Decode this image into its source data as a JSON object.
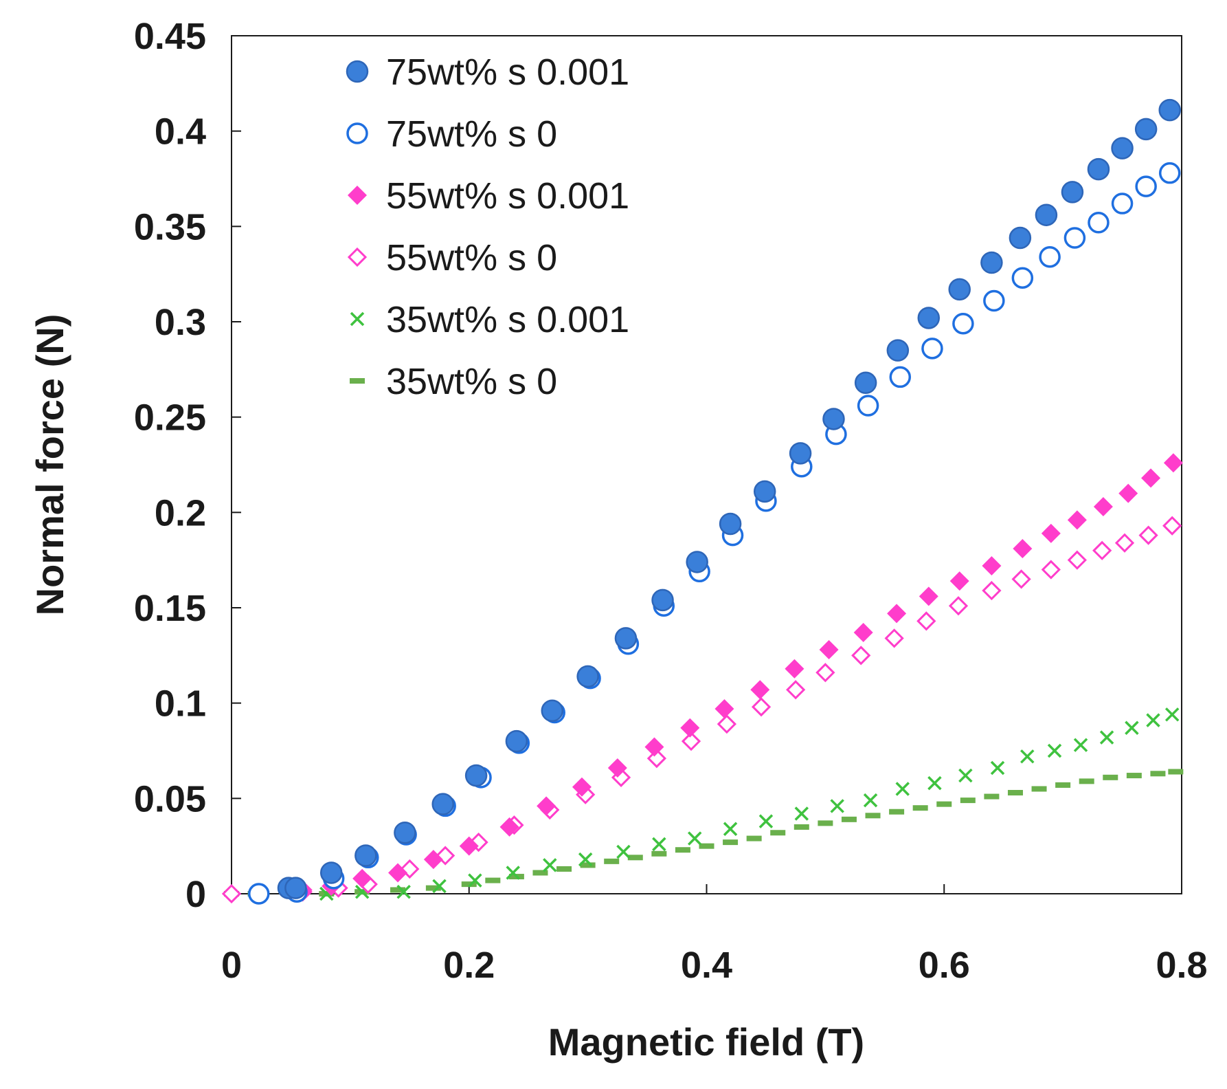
{
  "chart_data": {
    "type": "scatter",
    "title": "",
    "xlabel": "Magnetic field (T)",
    "ylabel": "Normal force (N)",
    "xlim": [
      0,
      0.8
    ],
    "ylim": [
      0,
      0.45
    ],
    "xticks": [
      0,
      0.2,
      0.4,
      0.6,
      0.8
    ],
    "xtick_labels": [
      "0",
      "0.2",
      "0.4",
      "0.6",
      "0.8"
    ],
    "yticks": [
      0,
      0.05,
      0.1,
      0.15,
      0.2,
      0.25,
      0.3,
      0.35,
      0.4,
      0.45
    ],
    "ytick_labels": [
      "0",
      "0.05",
      "0.1",
      "0.15",
      "0.2",
      "0.25",
      "0.3",
      "0.35",
      "0.4",
      "0.45"
    ],
    "grid": false,
    "legend_position": "top-left",
    "series": [
      {
        "name": "75wt% s 0.001",
        "marker": "circle-filled",
        "color": "#3a7fd9",
        "x": [
          0.048,
          0.054,
          0.084,
          0.113,
          0.146,
          0.178,
          0.206,
          0.24,
          0.27,
          0.3,
          0.332,
          0.363,
          0.392,
          0.42,
          0.449,
          0.479,
          0.507,
          0.534,
          0.561,
          0.587,
          0.613,
          0.64,
          0.664,
          0.686,
          0.708,
          0.73,
          0.75,
          0.77,
          0.79
        ],
        "y": [
          0.003,
          0.003,
          0.011,
          0.02,
          0.032,
          0.047,
          0.062,
          0.08,
          0.096,
          0.114,
          0.134,
          0.154,
          0.174,
          0.194,
          0.211,
          0.231,
          0.249,
          0.268,
          0.285,
          0.302,
          0.317,
          0.331,
          0.344,
          0.356,
          0.368,
          0.38,
          0.391,
          0.401,
          0.411
        ]
      },
      {
        "name": "75wt% s 0",
        "marker": "circle-open",
        "color": "#1f6fe0",
        "x": [
          0.023,
          0.055,
          0.086,
          0.115,
          0.147,
          0.18,
          0.21,
          0.242,
          0.272,
          0.302,
          0.334,
          0.364,
          0.394,
          0.422,
          0.45,
          0.48,
          0.509,
          0.536,
          0.563,
          0.59,
          0.616,
          0.642,
          0.666,
          0.689,
          0.71,
          0.73,
          0.75,
          0.77,
          0.79
        ],
        "y": [
          0.0,
          0.001,
          0.008,
          0.019,
          0.031,
          0.046,
          0.061,
          0.079,
          0.095,
          0.113,
          0.131,
          0.151,
          0.169,
          0.188,
          0.206,
          0.224,
          0.241,
          0.256,
          0.271,
          0.286,
          0.299,
          0.311,
          0.323,
          0.334,
          0.344,
          0.352,
          0.362,
          0.371,
          0.378
        ]
      },
      {
        "name": "55wt% s 0.001",
        "marker": "diamond-filled",
        "color": "#ff3dcb",
        "x": [
          0.06,
          0.084,
          0.11,
          0.14,
          0.17,
          0.2,
          0.234,
          0.265,
          0.295,
          0.325,
          0.356,
          0.386,
          0.415,
          0.445,
          0.474,
          0.503,
          0.532,
          0.56,
          0.587,
          0.613,
          0.64,
          0.666,
          0.69,
          0.712,
          0.734,
          0.755,
          0.774,
          0.793
        ],
        "y": [
          0.002,
          0.004,
          0.008,
          0.011,
          0.018,
          0.025,
          0.035,
          0.046,
          0.056,
          0.066,
          0.077,
          0.087,
          0.097,
          0.107,
          0.118,
          0.128,
          0.137,
          0.147,
          0.156,
          0.164,
          0.172,
          0.181,
          0.189,
          0.196,
          0.203,
          0.21,
          0.218,
          0.226
        ]
      },
      {
        "name": "55wt% s 0",
        "marker": "diamond-open",
        "color": "#ff3dcb",
        "x": [
          0.0,
          0.06,
          0.09,
          0.115,
          0.15,
          0.18,
          0.208,
          0.238,
          0.268,
          0.298,
          0.328,
          0.358,
          0.387,
          0.417,
          0.446,
          0.475,
          0.5,
          0.53,
          0.558,
          0.585,
          0.612,
          0.64,
          0.665,
          0.69,
          0.712,
          0.733,
          0.752,
          0.772,
          0.792
        ],
        "y": [
          0.0,
          0.001,
          0.003,
          0.005,
          0.013,
          0.02,
          0.027,
          0.036,
          0.044,
          0.052,
          0.061,
          0.071,
          0.08,
          0.089,
          0.098,
          0.107,
          0.116,
          0.125,
          0.134,
          0.143,
          0.151,
          0.159,
          0.165,
          0.17,
          0.175,
          0.18,
          0.184,
          0.188,
          0.193
        ]
      },
      {
        "name": "35wt% s 0.001",
        "marker": "x",
        "color": "#3fc23f",
        "x": [
          0.08,
          0.11,
          0.145,
          0.175,
          0.205,
          0.237,
          0.268,
          0.298,
          0.33,
          0.36,
          0.39,
          0.42,
          0.45,
          0.48,
          0.51,
          0.538,
          0.565,
          0.592,
          0.618,
          0.645,
          0.67,
          0.693,
          0.715,
          0.737,
          0.758,
          0.776,
          0.792
        ],
        "y": [
          0.0,
          0.001,
          0.001,
          0.004,
          0.007,
          0.011,
          0.015,
          0.018,
          0.022,
          0.026,
          0.029,
          0.034,
          0.038,
          0.042,
          0.046,
          0.049,
          0.055,
          0.058,
          0.062,
          0.066,
          0.072,
          0.075,
          0.078,
          0.082,
          0.087,
          0.091,
          0.094
        ]
      },
      {
        "name": "35wt% s 0",
        "marker": "dash",
        "color": "#6ab04c",
        "x": [
          0.0,
          0.02,
          0.05,
          0.08,
          0.11,
          0.14,
          0.17,
          0.2,
          0.22,
          0.24,
          0.26,
          0.28,
          0.3,
          0.32,
          0.34,
          0.36,
          0.38,
          0.4,
          0.42,
          0.44,
          0.46,
          0.48,
          0.5,
          0.52,
          0.54,
          0.56,
          0.58,
          0.6,
          0.62,
          0.64,
          0.66,
          0.68,
          0.7,
          0.72,
          0.74,
          0.76,
          0.78,
          0.795
        ],
        "y": [
          0.0,
          0.0,
          0.0,
          0.0,
          0.001,
          0.002,
          0.003,
          0.005,
          0.007,
          0.009,
          0.011,
          0.013,
          0.015,
          0.017,
          0.019,
          0.021,
          0.023,
          0.025,
          0.027,
          0.029,
          0.032,
          0.035,
          0.037,
          0.039,
          0.041,
          0.043,
          0.045,
          0.047,
          0.049,
          0.051,
          0.053,
          0.055,
          0.057,
          0.059,
          0.061,
          0.062,
          0.063,
          0.064
        ]
      }
    ]
  }
}
